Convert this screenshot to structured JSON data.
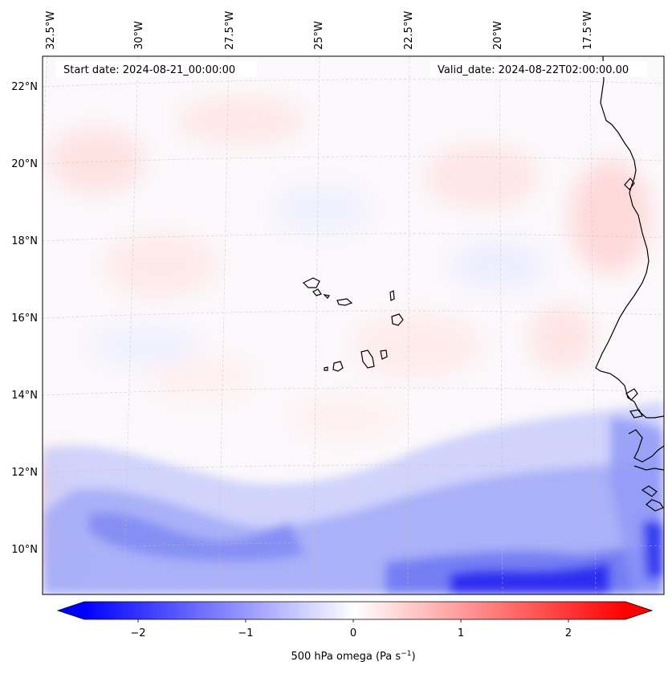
{
  "map": {
    "projection": "lambert-conformal",
    "region": "Eastern Atlantic / Cabo Verde / West African coast",
    "variable": "500 hPa omega",
    "start_date_text": "Start date: 2024-08-21_00:00:00",
    "valid_date_text": "Valid_date: 2024-08-22T02:00:00.00",
    "lon_labels": [
      "32.5°W",
      "30°W",
      "27.5°W",
      "25°W",
      "22.5°W",
      "20°W",
      "17.5°W"
    ],
    "lat_labels": [
      "22°N",
      "20°N",
      "18°N",
      "16°N",
      "14°N",
      "12°N",
      "10°N"
    ],
    "gridlines": true,
    "coastline_color": "#000000"
  },
  "colorbar": {
    "label_main": "500 hPa omega (Pa s",
    "label_sup": "−1",
    "label_end": ")",
    "tick_labels": [
      "−2",
      "−1",
      "0",
      "1",
      "2"
    ],
    "range": [
      -2.5,
      2.5
    ],
    "colormap": "bwr",
    "min_color": "#0000ff",
    "mid_color": "#ffffff",
    "max_color": "#ff0000",
    "extend": "both"
  }
}
